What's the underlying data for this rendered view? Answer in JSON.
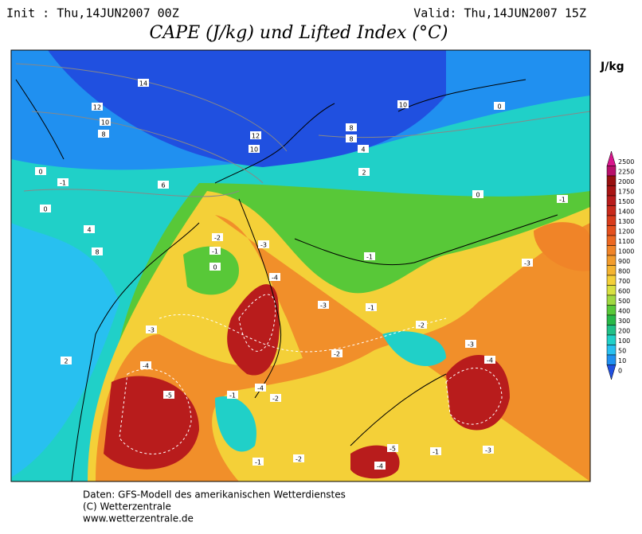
{
  "header": {
    "init": "Init : Thu,14JUN2007 00Z",
    "valid": "Valid: Thu,14JUN2007 15Z",
    "title": "CAPE (J/kg) und Lifted Index (°C)"
  },
  "colorbar": {
    "unit": "J/kg",
    "levels": [
      {
        "label": "2500",
        "color": "#d8158c"
      },
      {
        "label": "2250",
        "color": "#b8106a"
      },
      {
        "label": "2000",
        "color": "#981010"
      },
      {
        "label": "1750",
        "color": "#a81414"
      },
      {
        "label": "1500",
        "color": "#b81c1c"
      },
      {
        "label": "1400",
        "color": "#c82a1c"
      },
      {
        "label": "1300",
        "color": "#d83c1c"
      },
      {
        "label": "1200",
        "color": "#e4501e"
      },
      {
        "label": "1100",
        "color": "#ec6822"
      },
      {
        "label": "1000",
        "color": "#f08428"
      },
      {
        "label": "900",
        "color": "#f29c2c"
      },
      {
        "label": "800",
        "color": "#f4b430"
      },
      {
        "label": "700",
        "color": "#f4d038"
      },
      {
        "label": "600",
        "color": "#d8e040"
      },
      {
        "label": "500",
        "color": "#a0d840"
      },
      {
        "label": "400",
        "color": "#58c838"
      },
      {
        "label": "300",
        "color": "#28b848"
      },
      {
        "label": "200",
        "color": "#20c088"
      },
      {
        "label": "100",
        "color": "#20d0c8"
      },
      {
        "label": "50",
        "color": "#28c0f0"
      },
      {
        "label": "10",
        "color": "#2090f0"
      },
      {
        "label": "0",
        "color": "#2050e0"
      }
    ]
  },
  "map": {
    "contour_labels": [
      "14",
      "12",
      "10",
      "8",
      "12",
      "10",
      "8",
      "8",
      "4",
      "2",
      "10",
      "0",
      "-1",
      "0",
      "6",
      "4",
      "8",
      "0",
      "-2",
      "-1",
      "0",
      "-3",
      "-4",
      "-3",
      "-2",
      "-1",
      "-5",
      "-4",
      "-3",
      "-4",
      "-2",
      "-1",
      "-1",
      "-2",
      "-3",
      "-4",
      "-5",
      "-4",
      "-1",
      "-3",
      "-2",
      "-1",
      "-3",
      "-1",
      "0",
      "2"
    ]
  },
  "footer": {
    "line1": "Daten: GFS-Modell des amerikanischen Wetterdienstes",
    "line2": "(C) Wetterzentrale",
    "line3": "www.wetterzentrale.de"
  }
}
